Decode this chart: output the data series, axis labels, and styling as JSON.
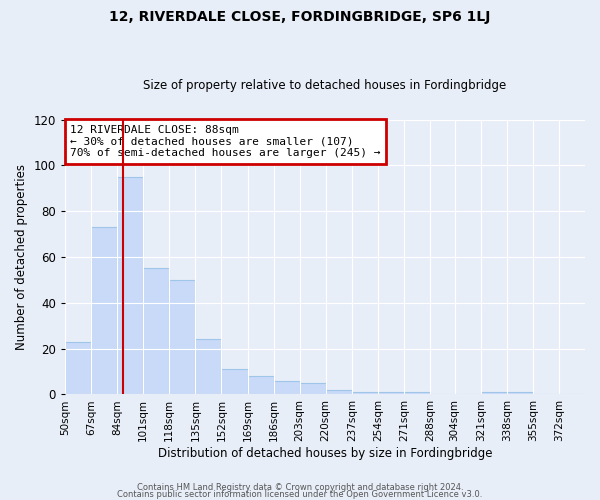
{
  "title": "12, RIVERDALE CLOSE, FORDINGBRIDGE, SP6 1LJ",
  "subtitle": "Size of property relative to detached houses in Fordingbridge",
  "xlabel": "Distribution of detached houses by size in Fordingbridge",
  "ylabel": "Number of detached properties",
  "bar_color": "#c9daf8",
  "bar_edge_color": "#9fc5e8",
  "background_color": "#e8eef8",
  "grid_color": "#ffffff",
  "annotation_box_color": "#ffffff",
  "annotation_box_edge": "#cc0000",
  "vline_color": "#cc0000",
  "vline_x": 88,
  "annotation_title": "12 RIVERDALE CLOSE: 88sqm",
  "annotation_line1": "← 30% of detached houses are smaller (107)",
  "annotation_line2": "70% of semi-detached houses are larger (245) →",
  "bins": [
    50,
    67,
    84,
    101,
    118,
    135,
    152,
    169,
    186,
    203,
    220,
    237,
    254,
    271,
    288,
    304,
    321,
    338,
    355,
    372,
    389
  ],
  "counts": [
    23,
    73,
    95,
    55,
    50,
    24,
    11,
    8,
    6,
    5,
    2,
    1,
    1,
    1,
    0,
    0,
    1,
    1,
    0,
    0
  ],
  "ylim": [
    0,
    120
  ],
  "yticks": [
    0,
    20,
    40,
    60,
    80,
    100,
    120
  ],
  "footer1": "Contains HM Land Registry data © Crown copyright and database right 2024.",
  "footer2": "Contains public sector information licensed under the Open Government Licence v3.0."
}
